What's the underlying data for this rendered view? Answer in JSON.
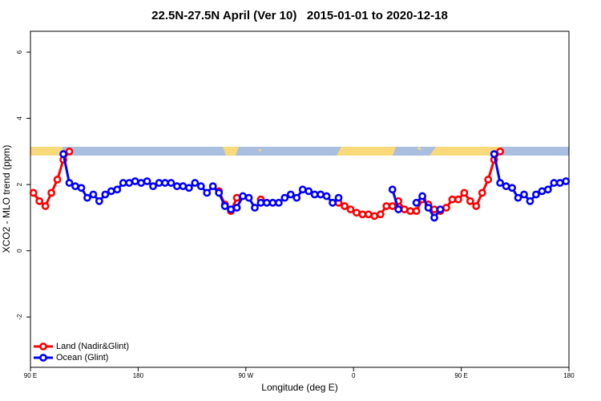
{
  "chart_data": {
    "type": "line",
    "title": "22.5N-27.5N April (Ver 10)   2015-01-01 to 2020-12-18",
    "x_label": "Longitude (deg E)",
    "y_label": "XCO2 - MLO trend (ppm)",
    "x": [
      92.5,
      97.5,
      102.5,
      107.5,
      112.5,
      117.5,
      122.5,
      127.5,
      132.5,
      137.5,
      142.5,
      147.5,
      152.5,
      157.5,
      162.5,
      167.5,
      172.5,
      177.5,
      182.5,
      187.5,
      192.5,
      197.5,
      202.5,
      207.5,
      212.5,
      217.5,
      222.5,
      227.5,
      232.5,
      237.5,
      242.5,
      247.5,
      252.5,
      257.5,
      262.5,
      267.5,
      272.5,
      277.5,
      282.5,
      287.5,
      292.5,
      297.5,
      302.5,
      307.5,
      312.5,
      317.5,
      322.5,
      327.5,
      332.5,
      337.5,
      342.5,
      347.5,
      352.5,
      357.5,
      362.5,
      367.5,
      372.5,
      377.5,
      382.5,
      387.5,
      392.5,
      397.5,
      402.5,
      407.5,
      412.5,
      417.5,
      422.5,
      427.5,
      432.5,
      437.5,
      442.5,
      447.5,
      452.5,
      457.5,
      462.5,
      467.5,
      472.5,
      477.5,
      482.5,
      487.5,
      492.5,
      497.5,
      502.5,
      507.5,
      512.5,
      517.5,
      522.5,
      527.5,
      532.5,
      537.5
    ],
    "series": [
      {
        "name": "Land (Nadir&Glint)",
        "color": "#ff0000",
        "values": [
          1.75,
          1.5,
          1.35,
          1.75,
          2.15,
          2.75,
          3.0,
          null,
          null,
          null,
          null,
          null,
          null,
          null,
          null,
          null,
          null,
          null,
          null,
          null,
          null,
          null,
          null,
          null,
          null,
          null,
          null,
          null,
          null,
          null,
          null,
          1.8,
          1.4,
          1.2,
          1.6,
          null,
          null,
          null,
          1.55,
          null,
          null,
          null,
          null,
          null,
          null,
          null,
          null,
          null,
          null,
          null,
          null,
          1.45,
          1.35,
          1.25,
          1.15,
          1.1,
          1.1,
          1.05,
          1.1,
          1.35,
          1.35,
          1.5,
          1.25,
          1.2,
          1.2,
          1.55,
          1.4,
          1.25,
          1.2,
          1.3,
          1.55,
          1.55,
          1.75,
          1.5,
          1.35,
          1.75,
          2.15,
          2.75,
          3.0,
          null,
          null,
          null,
          null,
          null,
          null,
          null,
          null,
          null,
          null,
          null
        ]
      },
      {
        "name": "Ocean (Glint)",
        "color": "#0000ff",
        "values": [
          null,
          null,
          null,
          null,
          null,
          2.92,
          2.05,
          1.95,
          1.9,
          1.6,
          1.7,
          1.5,
          1.7,
          1.8,
          1.85,
          2.05,
          2.05,
          2.1,
          2.05,
          2.1,
          1.95,
          2.05,
          2.05,
          2.05,
          1.95,
          1.95,
          1.9,
          2.05,
          1.95,
          1.75,
          1.95,
          1.75,
          1.35,
          1.25,
          1.3,
          1.65,
          1.6,
          1.3,
          1.45,
          1.45,
          1.45,
          1.45,
          1.6,
          1.7,
          1.6,
          1.85,
          1.8,
          1.7,
          1.7,
          1.65,
          1.45,
          1.6,
          null,
          null,
          null,
          null,
          null,
          null,
          null,
          null,
          1.85,
          1.25,
          null,
          null,
          1.45,
          1.65,
          1.3,
          1.0,
          1.25,
          null,
          null,
          null,
          null,
          null,
          null,
          null,
          null,
          2.92,
          2.05,
          1.95,
          1.9,
          1.6,
          1.7,
          1.5,
          1.7,
          1.8,
          1.85,
          2.05,
          2.05,
          2.1
        ]
      }
    ],
    "xlim": [
      90,
      540
    ],
    "xticks": [
      {
        "value": 90,
        "label": "90 E"
      },
      180,
      {
        "value": 270,
        "label": "90 W"
      },
      {
        "value": 360,
        "label": "0"
      },
      {
        "value": 450,
        "label": "90 E"
      },
      {
        "value": 540,
        "label": "180"
      }
    ],
    "ylim": [
      -3.52,
      6.63
    ],
    "yticks": [
      -2,
      0,
      2,
      4,
      6
    ],
    "legend": "bottomleft"
  }
}
